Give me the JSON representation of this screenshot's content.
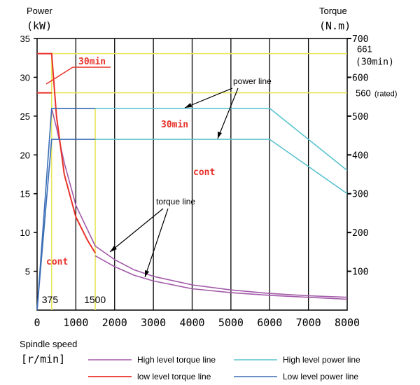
{
  "chart_data": {
    "type": "line",
    "left_axis": {
      "label_line1": "Power",
      "label_line2": "(kW)",
      "ylim": [
        0,
        35
      ],
      "ticks": [
        5,
        10,
        15,
        20,
        25,
        30,
        35
      ]
    },
    "right_axis": {
      "label_line1": "Torque",
      "label_line2": "(N.m)",
      "ylim": [
        0,
        700
      ],
      "ticks": [
        100,
        200,
        300,
        400,
        500,
        600,
        700
      ]
    },
    "x_axis": {
      "label_line1": "Spindle speed",
      "label_line2": "[r/min]",
      "xlim": [
        0,
        8000
      ],
      "ticks": [
        0,
        1000,
        2000,
        3000,
        4000,
        5000,
        6000,
        7000,
        8000
      ]
    },
    "reference_lines": [
      {
        "axis": "y_right",
        "value": 661,
        "label_line1": "661",
        "label_line2": "(30min)",
        "color": "#e6e65a"
      },
      {
        "axis": "y_right",
        "value": 560,
        "label_line1": "560",
        "label_line2": "(rated)",
        "color": "#e6e65a"
      },
      {
        "axis": "x",
        "value": 375,
        "label": "375",
        "color": "#e6e65a"
      },
      {
        "axis": "x",
        "value": 1500,
        "label": "1500",
        "color": "#e6e65a"
      }
    ],
    "series": [
      {
        "name": "High level torque line",
        "axis": "right",
        "color": "#a259a8",
        "x": [
          375,
          500,
          700,
          1000,
          1500,
          2000,
          2500,
          3000,
          4000,
          5000,
          6000,
          7000,
          8000
        ],
        "y": [
          520,
          470,
          380,
          270,
          165,
          130,
          104,
          87,
          65,
          52,
          43,
          37,
          33
        ]
      },
      {
        "name": "low level torque line",
        "axis": "right",
        "color": "#e8322a",
        "x": [
          0,
          375,
          500,
          700,
          1000,
          1300,
          1500
        ],
        "y": [
          661,
          661,
          500,
          350,
          240,
          180,
          147
        ]
      },
      {
        "name": "low level torque line (cont)",
        "axis": "right",
        "color": "#e8322a",
        "x": [
          0,
          375
        ],
        "y": [
          560,
          560
        ]
      },
      {
        "name": "Low level torque line (lower)",
        "axis": "right",
        "color": "#a259a8",
        "x": [
          1500,
          2000,
          2500,
          3000,
          4000,
          5000,
          6000,
          7000,
          8000
        ],
        "y": [
          140,
          112,
          90,
          75,
          55,
          45,
          38,
          33,
          28
        ]
      },
      {
        "name": "High level power line",
        "axis": "left",
        "color": "#5bc3cf",
        "x": [
          375,
          6000,
          8000
        ],
        "y": [
          26,
          26,
          18
        ]
      },
      {
        "name": "High level power line (cont)",
        "axis": "left",
        "color": "#5bc3cf",
        "x": [
          1500,
          6000,
          8000
        ],
        "y": [
          22,
          22,
          15
        ]
      },
      {
        "name": "Low level power line",
        "axis": "left",
        "color": "#3a6db5",
        "x": [
          0,
          375,
          1500
        ],
        "y": [
          0,
          26,
          26
        ]
      },
      {
        "name": "Low level power line (cont)",
        "axis": "left",
        "color": "#3a6db5",
        "x": [
          0,
          375,
          1500
        ],
        "y": [
          0,
          22,
          22
        ]
      }
    ],
    "annotations": {
      "power_line": "power line",
      "torque_line": "torque line",
      "min30_top": "30min",
      "min30_mid": "30min",
      "cont_mid": "cont",
      "cont_low": "cont"
    },
    "legend": {
      "placement": "bottom",
      "items": [
        {
          "name": "High level torque line",
          "color": "#a259a8"
        },
        {
          "name": "High level power line",
          "color": "#5bc3cf"
        },
        {
          "name": "low level torque line",
          "color": "#e8322a"
        },
        {
          "name": "Low level power line",
          "color": "#3a6db5"
        }
      ]
    },
    "grid": true
  }
}
